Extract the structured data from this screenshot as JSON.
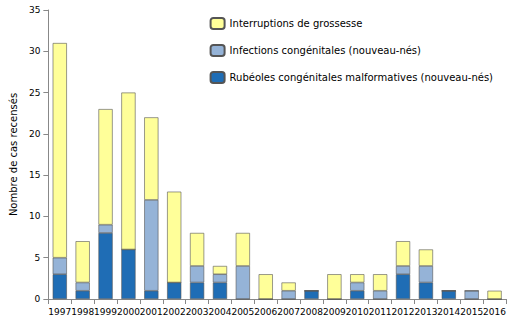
{
  "chart_data": {
    "type": "bar",
    "stacked": true,
    "grid": false,
    "legend": "upper right",
    "y_label": "Nombre de cas recensés",
    "categories": [
      "1997",
      "1998",
      "1999",
      "2000",
      "2001",
      "2002",
      "2003",
      "2004",
      "2005",
      "2006",
      "2007",
      "2008",
      "2009",
      "2010",
      "2011",
      "2012",
      "2013",
      "2014",
      "2015",
      "2016"
    ],
    "series": [
      {
        "name": "Rubéoles congénitales malformatives (nouveau-nés)",
        "color": "#1f6db5",
        "values": [
          3,
          1,
          8,
          6,
          1,
          2,
          2,
          2,
          0,
          0,
          0,
          1,
          0,
          1,
          0,
          3,
          2,
          1,
          0,
          0
        ]
      },
      {
        "name": "Infections congénitales (nouveau-nés)",
        "color": "#95b3d7",
        "values": [
          2,
          1,
          1,
          0,
          11,
          0,
          2,
          1,
          4,
          0,
          1,
          0,
          0,
          1,
          1,
          1,
          2,
          0,
          1,
          0
        ]
      },
      {
        "name": "Interruptions de grossesse",
        "color": "#ffff99",
        "values": [
          26,
          5,
          14,
          19,
          10,
          11,
          4,
          1,
          4,
          3,
          1,
          0,
          3,
          1,
          2,
          3,
          2,
          0,
          0,
          1
        ]
      }
    ],
    "ylim": [
      0,
      35
    ],
    "yticks": [
      0,
      5,
      10,
      15,
      20,
      25,
      30,
      35
    ]
  }
}
